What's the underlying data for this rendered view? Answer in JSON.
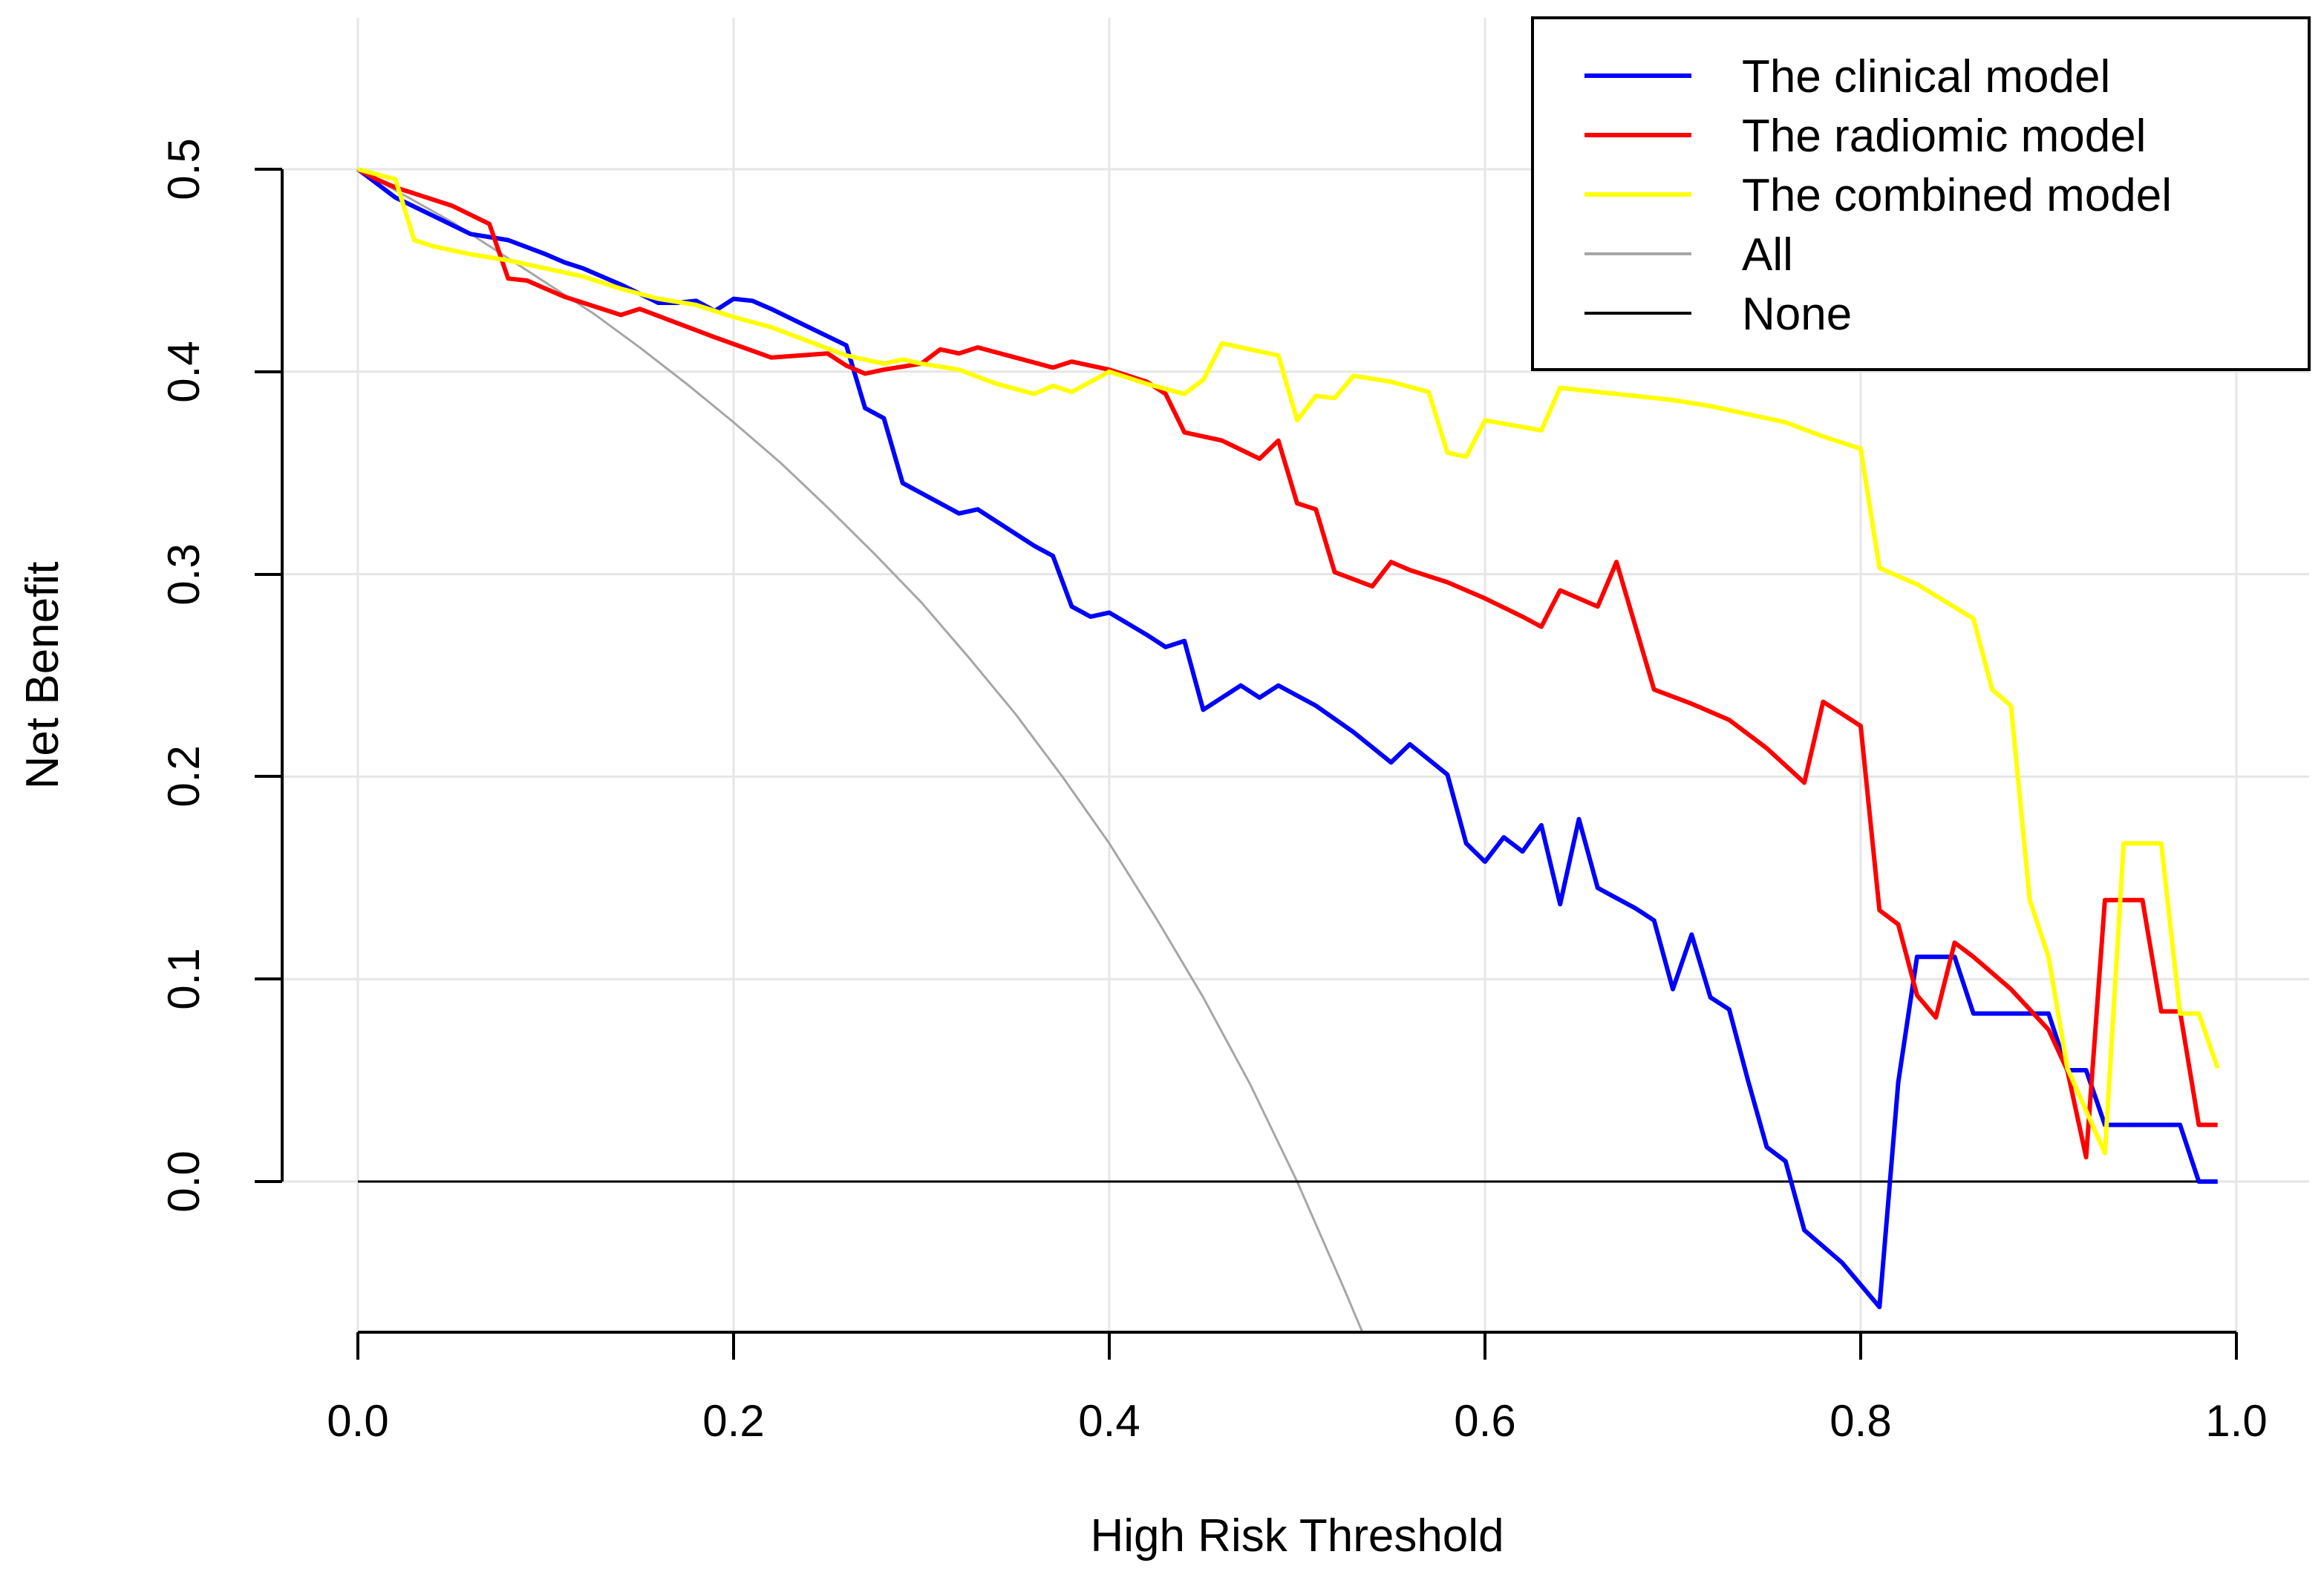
{
  "chart_data": {
    "type": "line",
    "title": "",
    "xlabel": "High Risk Threshold",
    "ylabel": "Net Benefit",
    "xlim": [
      0,
      1
    ],
    "ylim": [
      -0.075,
      0.5
    ],
    "x_ticks": [
      0.0,
      0.2,
      0.4,
      0.6,
      0.8,
      1.0
    ],
    "x_tick_labels": [
      "0.0",
      "0.2",
      "0.4",
      "0.6",
      "0.8",
      "1.0"
    ],
    "y_ticks": [
      0.0,
      0.1,
      0.2,
      0.3,
      0.4,
      0.5
    ],
    "y_tick_labels": [
      "0.0",
      "0.1",
      "0.2",
      "0.3",
      "0.4",
      "0.5"
    ],
    "grid": true,
    "legend_position": "top-right",
    "series": [
      {
        "name": "The clinical model",
        "color": "#0000ff",
        "x": [
          0.0,
          0.02,
          0.04,
          0.06,
          0.08,
          0.1,
          0.11,
          0.12,
          0.14,
          0.16,
          0.17,
          0.18,
          0.19,
          0.2,
          0.21,
          0.22,
          0.24,
          0.26,
          0.27,
          0.28,
          0.29,
          0.3,
          0.32,
          0.33,
          0.34,
          0.36,
          0.37,
          0.38,
          0.39,
          0.4,
          0.42,
          0.43,
          0.44,
          0.45,
          0.47,
          0.48,
          0.49,
          0.51,
          0.53,
          0.55,
          0.56,
          0.58,
          0.59,
          0.6,
          0.61,
          0.62,
          0.63,
          0.64,
          0.65,
          0.66,
          0.68,
          0.69,
          0.7,
          0.71,
          0.72,
          0.73,
          0.74,
          0.75,
          0.76,
          0.77,
          0.79,
          0.81,
          0.82,
          0.83,
          0.85,
          0.86,
          0.88,
          0.89,
          0.9,
          0.91,
          0.92,
          0.93,
          0.94,
          0.96,
          0.97,
          0.98,
          0.99
        ],
        "y": [
          0.5,
          0.486,
          0.477,
          0.468,
          0.465,
          0.458,
          0.454,
          0.451,
          0.443,
          0.434,
          0.434,
          0.435,
          0.43,
          0.436,
          0.435,
          0.431,
          0.422,
          0.413,
          0.382,
          0.377,
          0.345,
          0.34,
          0.33,
          0.332,
          0.326,
          0.314,
          0.309,
          0.284,
          0.279,
          0.281,
          0.27,
          0.264,
          0.267,
          0.233,
          0.245,
          0.239,
          0.245,
          0.235,
          0.222,
          0.207,
          0.216,
          0.201,
          0.167,
          0.158,
          0.17,
          0.163,
          0.176,
          0.137,
          0.179,
          0.145,
          0.135,
          0.129,
          0.095,
          0.122,
          0.091,
          0.085,
          0.05,
          0.017,
          0.01,
          -0.024,
          -0.04,
          -0.062,
          0.049,
          0.111,
          0.111,
          0.083,
          0.083,
          0.083,
          0.083,
          0.055,
          0.055,
          0.028,
          0.028,
          0.028,
          0.028,
          0.0,
          0.0
        ]
      },
      {
        "name": "The radiomic model",
        "color": "#ff0000",
        "x": [
          0.0,
          0.01,
          0.02,
          0.03,
          0.05,
          0.07,
          0.08,
          0.09,
          0.1,
          0.11,
          0.12,
          0.14,
          0.15,
          0.17,
          0.19,
          0.22,
          0.25,
          0.26,
          0.27,
          0.28,
          0.3,
          0.31,
          0.32,
          0.33,
          0.35,
          0.37,
          0.38,
          0.4,
          0.42,
          0.43,
          0.44,
          0.46,
          0.48,
          0.49,
          0.5,
          0.51,
          0.52,
          0.54,
          0.55,
          0.56,
          0.58,
          0.6,
          0.62,
          0.63,
          0.64,
          0.66,
          0.67,
          0.69,
          0.71,
          0.73,
          0.75,
          0.77,
          0.78,
          0.8,
          0.81,
          0.82,
          0.83,
          0.84,
          0.85,
          0.86,
          0.88,
          0.9,
          0.91,
          0.92,
          0.93,
          0.94,
          0.95,
          0.96,
          0.97,
          0.98,
          0.99
        ],
        "y": [
          0.5,
          0.495,
          0.491,
          0.488,
          0.482,
          0.473,
          0.446,
          0.445,
          0.441,
          0.437,
          0.434,
          0.428,
          0.431,
          0.424,
          0.417,
          0.407,
          0.409,
          0.403,
          0.399,
          0.401,
          0.404,
          0.411,
          0.409,
          0.412,
          0.407,
          0.402,
          0.405,
          0.401,
          0.395,
          0.389,
          0.37,
          0.366,
          0.357,
          0.366,
          0.335,
          0.332,
          0.301,
          0.294,
          0.306,
          0.302,
          0.296,
          0.288,
          0.279,
          0.274,
          0.292,
          0.284,
          0.306,
          0.243,
          0.236,
          0.228,
          0.214,
          0.197,
          0.237,
          0.225,
          0.134,
          0.127,
          0.092,
          0.081,
          0.118,
          0.111,
          0.095,
          0.075,
          0.055,
          0.012,
          0.139,
          0.139,
          0.139,
          0.084,
          0.084,
          0.028,
          0.028
        ]
      },
      {
        "name": "The combined model",
        "color": "#ffff00",
        "x": [
          0.0,
          0.02,
          0.03,
          0.04,
          0.06,
          0.08,
          0.1,
          0.12,
          0.14,
          0.16,
          0.18,
          0.19,
          0.2,
          0.22,
          0.24,
          0.26,
          0.28,
          0.29,
          0.3,
          0.32,
          0.34,
          0.36,
          0.37,
          0.38,
          0.4,
          0.42,
          0.44,
          0.45,
          0.46,
          0.47,
          0.49,
          0.5,
          0.51,
          0.52,
          0.53,
          0.55,
          0.57,
          0.58,
          0.59,
          0.6,
          0.63,
          0.64,
          0.66,
          0.68,
          0.7,
          0.72,
          0.74,
          0.76,
          0.78,
          0.8,
          0.81,
          0.83,
          0.86,
          0.87,
          0.88,
          0.89,
          0.9,
          0.91,
          0.93,
          0.94,
          0.96,
          0.97,
          0.98,
          0.99
        ],
        "y": [
          0.5,
          0.495,
          0.465,
          0.462,
          0.458,
          0.455,
          0.451,
          0.447,
          0.441,
          0.436,
          0.433,
          0.43,
          0.427,
          0.422,
          0.415,
          0.408,
          0.404,
          0.406,
          0.404,
          0.401,
          0.394,
          0.389,
          0.393,
          0.39,
          0.4,
          0.394,
          0.389,
          0.396,
          0.414,
          0.412,
          0.408,
          0.376,
          0.388,
          0.387,
          0.398,
          0.395,
          0.39,
          0.36,
          0.358,
          0.376,
          0.371,
          0.392,
          0.39,
          0.388,
          0.386,
          0.383,
          0.379,
          0.375,
          0.368,
          0.362,
          0.303,
          0.295,
          0.278,
          0.243,
          0.235,
          0.139,
          0.111,
          0.056,
          0.014,
          0.167,
          0.167,
          0.083,
          0.083,
          0.056
        ]
      },
      {
        "name": "All",
        "color": "#a6a6a6",
        "x": [
          0.0,
          0.025,
          0.05,
          0.075,
          0.1,
          0.125,
          0.15,
          0.175,
          0.2,
          0.225,
          0.25,
          0.275,
          0.3,
          0.325,
          0.35,
          0.375,
          0.4,
          0.425,
          0.45,
          0.475,
          0.5,
          0.525,
          0.535
        ],
        "y": [
          0.5,
          0.487,
          0.474,
          0.459,
          0.444,
          0.429,
          0.412,
          0.394,
          0.375,
          0.355,
          0.333,
          0.31,
          0.286,
          0.259,
          0.231,
          0.2,
          0.167,
          0.13,
          0.091,
          0.048,
          0.0,
          -0.053,
          -0.075
        ]
      },
      {
        "name": "None",
        "color": "#000000",
        "x": [
          0.0,
          0.99
        ],
        "y": [
          0.0,
          0.0
        ]
      }
    ]
  }
}
